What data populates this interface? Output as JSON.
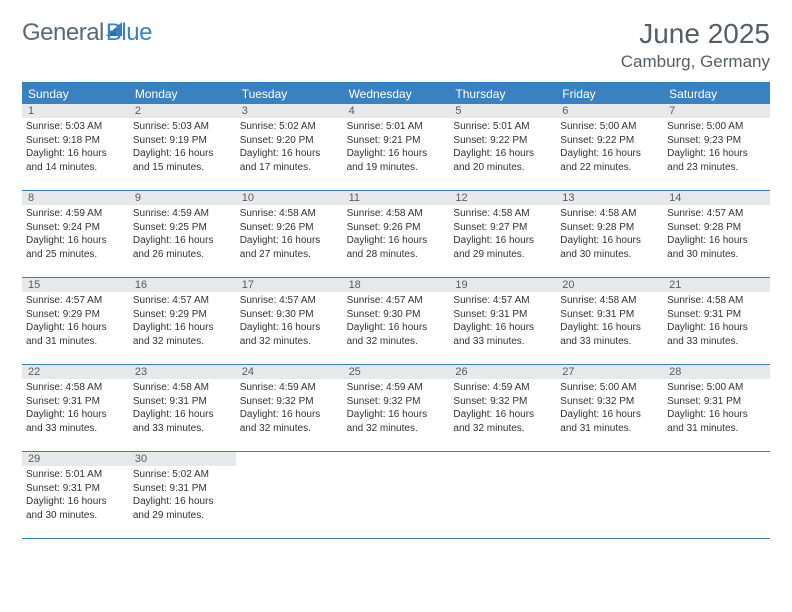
{
  "brand": {
    "word1": "General",
    "word2": "Blue",
    "color_general": "#5a6a74",
    "color_blue": "#3a81bf"
  },
  "title": "June 2025",
  "location": "Camburg, Germany",
  "theme": {
    "header_bg": "#3a81bf",
    "daynum_bg": "#e7e8e9",
    "border_color": "#3a81bf",
    "page_bg": "#ffffff",
    "text_color": "#333333",
    "title_color": "#545e66"
  },
  "weekdays": [
    "Sunday",
    "Monday",
    "Tuesday",
    "Wednesday",
    "Thursday",
    "Friday",
    "Saturday"
  ],
  "weeks": [
    [
      {
        "n": "1",
        "sunrise": "5:03 AM",
        "sunset": "9:18 PM",
        "daylight": "16 hours and 14 minutes."
      },
      {
        "n": "2",
        "sunrise": "5:03 AM",
        "sunset": "9:19 PM",
        "daylight": "16 hours and 15 minutes."
      },
      {
        "n": "3",
        "sunrise": "5:02 AM",
        "sunset": "9:20 PM",
        "daylight": "16 hours and 17 minutes."
      },
      {
        "n": "4",
        "sunrise": "5:01 AM",
        "sunset": "9:21 PM",
        "daylight": "16 hours and 19 minutes."
      },
      {
        "n": "5",
        "sunrise": "5:01 AM",
        "sunset": "9:22 PM",
        "daylight": "16 hours and 20 minutes."
      },
      {
        "n": "6",
        "sunrise": "5:00 AM",
        "sunset": "9:22 PM",
        "daylight": "16 hours and 22 minutes."
      },
      {
        "n": "7",
        "sunrise": "5:00 AM",
        "sunset": "9:23 PM",
        "daylight": "16 hours and 23 minutes."
      }
    ],
    [
      {
        "n": "8",
        "sunrise": "4:59 AM",
        "sunset": "9:24 PM",
        "daylight": "16 hours and 25 minutes."
      },
      {
        "n": "9",
        "sunrise": "4:59 AM",
        "sunset": "9:25 PM",
        "daylight": "16 hours and 26 minutes."
      },
      {
        "n": "10",
        "sunrise": "4:58 AM",
        "sunset": "9:26 PM",
        "daylight": "16 hours and 27 minutes."
      },
      {
        "n": "11",
        "sunrise": "4:58 AM",
        "sunset": "9:26 PM",
        "daylight": "16 hours and 28 minutes."
      },
      {
        "n": "12",
        "sunrise": "4:58 AM",
        "sunset": "9:27 PM",
        "daylight": "16 hours and 29 minutes."
      },
      {
        "n": "13",
        "sunrise": "4:58 AM",
        "sunset": "9:28 PM",
        "daylight": "16 hours and 30 minutes."
      },
      {
        "n": "14",
        "sunrise": "4:57 AM",
        "sunset": "9:28 PM",
        "daylight": "16 hours and 30 minutes."
      }
    ],
    [
      {
        "n": "15",
        "sunrise": "4:57 AM",
        "sunset": "9:29 PM",
        "daylight": "16 hours and 31 minutes."
      },
      {
        "n": "16",
        "sunrise": "4:57 AM",
        "sunset": "9:29 PM",
        "daylight": "16 hours and 32 minutes."
      },
      {
        "n": "17",
        "sunrise": "4:57 AM",
        "sunset": "9:30 PM",
        "daylight": "16 hours and 32 minutes."
      },
      {
        "n": "18",
        "sunrise": "4:57 AM",
        "sunset": "9:30 PM",
        "daylight": "16 hours and 32 minutes."
      },
      {
        "n": "19",
        "sunrise": "4:57 AM",
        "sunset": "9:31 PM",
        "daylight": "16 hours and 33 minutes."
      },
      {
        "n": "20",
        "sunrise": "4:58 AM",
        "sunset": "9:31 PM",
        "daylight": "16 hours and 33 minutes."
      },
      {
        "n": "21",
        "sunrise": "4:58 AM",
        "sunset": "9:31 PM",
        "daylight": "16 hours and 33 minutes."
      }
    ],
    [
      {
        "n": "22",
        "sunrise": "4:58 AM",
        "sunset": "9:31 PM",
        "daylight": "16 hours and 33 minutes."
      },
      {
        "n": "23",
        "sunrise": "4:58 AM",
        "sunset": "9:31 PM",
        "daylight": "16 hours and 33 minutes."
      },
      {
        "n": "24",
        "sunrise": "4:59 AM",
        "sunset": "9:32 PM",
        "daylight": "16 hours and 32 minutes."
      },
      {
        "n": "25",
        "sunrise": "4:59 AM",
        "sunset": "9:32 PM",
        "daylight": "16 hours and 32 minutes."
      },
      {
        "n": "26",
        "sunrise": "4:59 AM",
        "sunset": "9:32 PM",
        "daylight": "16 hours and 32 minutes."
      },
      {
        "n": "27",
        "sunrise": "5:00 AM",
        "sunset": "9:32 PM",
        "daylight": "16 hours and 31 minutes."
      },
      {
        "n": "28",
        "sunrise": "5:00 AM",
        "sunset": "9:31 PM",
        "daylight": "16 hours and 31 minutes."
      }
    ],
    [
      {
        "n": "29",
        "sunrise": "5:01 AM",
        "sunset": "9:31 PM",
        "daylight": "16 hours and 30 minutes."
      },
      {
        "n": "30",
        "sunrise": "5:02 AM",
        "sunset": "9:31 PM",
        "daylight": "16 hours and 29 minutes."
      },
      null,
      null,
      null,
      null,
      null
    ]
  ],
  "labels": {
    "sunrise_prefix": "Sunrise: ",
    "sunset_prefix": "Sunset: ",
    "daylight_prefix": "Daylight: "
  }
}
